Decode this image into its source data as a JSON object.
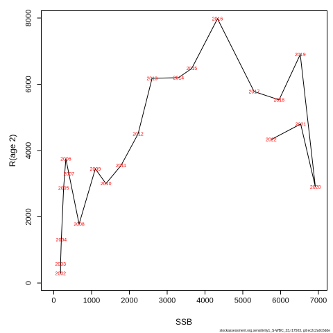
{
  "chart_data": {
    "type": "line",
    "xlabel": "SSB",
    "ylabel": "R(age 2)",
    "xlim": [
      -330,
      7230
    ],
    "ylim": [
      -220,
      8220
    ],
    "x_ticks": [
      0,
      1000,
      2000,
      3000,
      4000,
      5000,
      6000,
      7000
    ],
    "y_ticks": [
      0,
      2000,
      4000,
      6000,
      8000
    ],
    "grid": false,
    "label_color": "#ff0000",
    "line_color": "#000000",
    "points": [
      {
        "label": "2002",
        "x": 180,
        "y": 290
      },
      {
        "label": "2003",
        "x": 180,
        "y": 580
      },
      {
        "label": "2004",
        "x": 200,
        "y": 1310
      },
      {
        "label": "2005",
        "x": 260,
        "y": 2870
      },
      {
        "label": "2006",
        "x": 320,
        "y": 3750
      },
      {
        "label": "2007",
        "x": 400,
        "y": 3300
      },
      {
        "label": "2008",
        "x": 670,
        "y": 1780
      },
      {
        "label": "2009",
        "x": 1100,
        "y": 3450
      },
      {
        "label": "2010",
        "x": 1380,
        "y": 3000
      },
      {
        "label": "2011",
        "x": 1780,
        "y": 3550
      },
      {
        "label": "2012",
        "x": 2230,
        "y": 4500
      },
      {
        "label": "2013",
        "x": 2600,
        "y": 6180
      },
      {
        "label": "2014",
        "x": 3300,
        "y": 6200
      },
      {
        "label": "2015",
        "x": 3650,
        "y": 6480
      },
      {
        "label": "2016",
        "x": 4330,
        "y": 7980
      },
      {
        "label": "2017",
        "x": 5300,
        "y": 5780
      },
      {
        "label": "2018",
        "x": 5960,
        "y": 5530
      },
      {
        "label": "2019",
        "x": 6520,
        "y": 6900
      },
      {
        "label": "2020",
        "x": 6920,
        "y": 2900
      },
      {
        "label": "2021",
        "x": 6530,
        "y": 4800
      },
      {
        "label": "2022",
        "x": 5750,
        "y": 4330
      }
    ]
  },
  "caption": "stockassessment.org,sensitivity1_S-WBC_23,r17503, git:ec2c2a0c6dde"
}
